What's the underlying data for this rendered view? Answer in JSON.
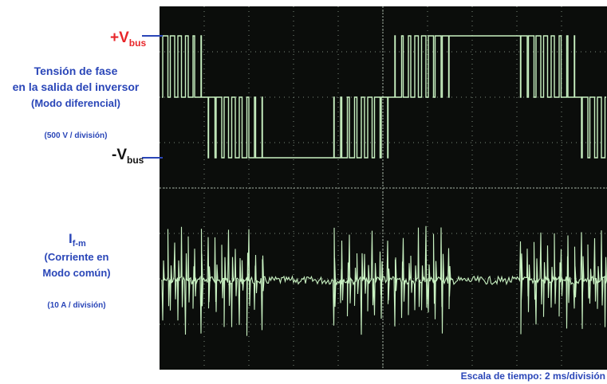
{
  "labels": {
    "vbus_plus": {
      "main": "+V",
      "sub": "bus"
    },
    "vbus_minus": {
      "main": "-V",
      "sub": "bus"
    },
    "phase_voltage": [
      "Tensión de fase",
      "en la salida del inversor",
      "(Modo diferencial)"
    ],
    "voltage_scale": "(500 V / división)",
    "current": {
      "main": "I",
      "sub": "f-m"
    },
    "current_desc": [
      "(Corriente en",
      "Modo común)"
    ],
    "current_scale": "(10 A / división)",
    "time_scale": "Escala de tiempo: 2 ms/división"
  }
}
